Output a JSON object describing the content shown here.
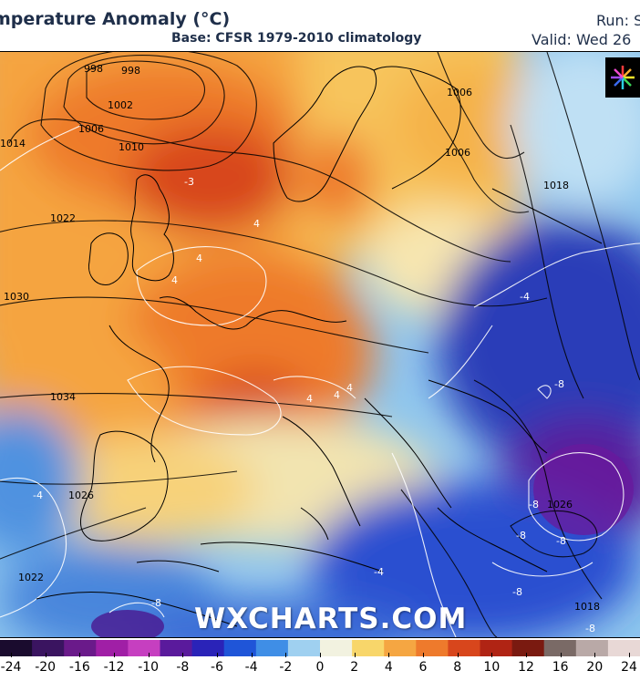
{
  "header": {
    "title": "mperature Anomaly (°C)",
    "subtitle": "Base: CFSR 1979-2010 climatology",
    "run": "Run: S",
    "valid": "Valid: Wed 26"
  },
  "map": {
    "watermark": "WXCHARTS.COM",
    "logo": "wxcharts-logo-icon",
    "isobar_labels": [
      "998",
      "998",
      "1002",
      "1006",
      "1010",
      "1014",
      "1022",
      "1030",
      "1034",
      "1026",
      "1022",
      "1006",
      "1006",
      "1018",
      "1018",
      "1026"
    ],
    "anomaly_labels": [
      "-3",
      "4",
      "4",
      "4",
      "4",
      "4",
      "4",
      "-4",
      "-4",
      "-4",
      "-8",
      "-8",
      "-8",
      "-8",
      "-8",
      "-8",
      "-8"
    ]
  },
  "colorbar": {
    "ticks": [
      "-24",
      "-20",
      "-16",
      "-12",
      "-10",
      "-8",
      "-6",
      "-4",
      "-2",
      "0",
      "2",
      "4",
      "6",
      "8",
      "10",
      "12",
      "16",
      "20",
      "24"
    ],
    "colors": [
      "#1a0b2e",
      "#3a1460",
      "#6a1a8a",
      "#a01fa6",
      "#c63fc0",
      "#5a1a9c",
      "#2a23b8",
      "#1f55d8",
      "#3f8ee6",
      "#9fd0f0",
      "#f2f2e0",
      "#f8d66a",
      "#f5a642",
      "#ee7a2c",
      "#d8461c",
      "#b02414",
      "#7a1a10",
      "#7a6a66",
      "#b9a9a7",
      "#e8d8d6"
    ]
  }
}
